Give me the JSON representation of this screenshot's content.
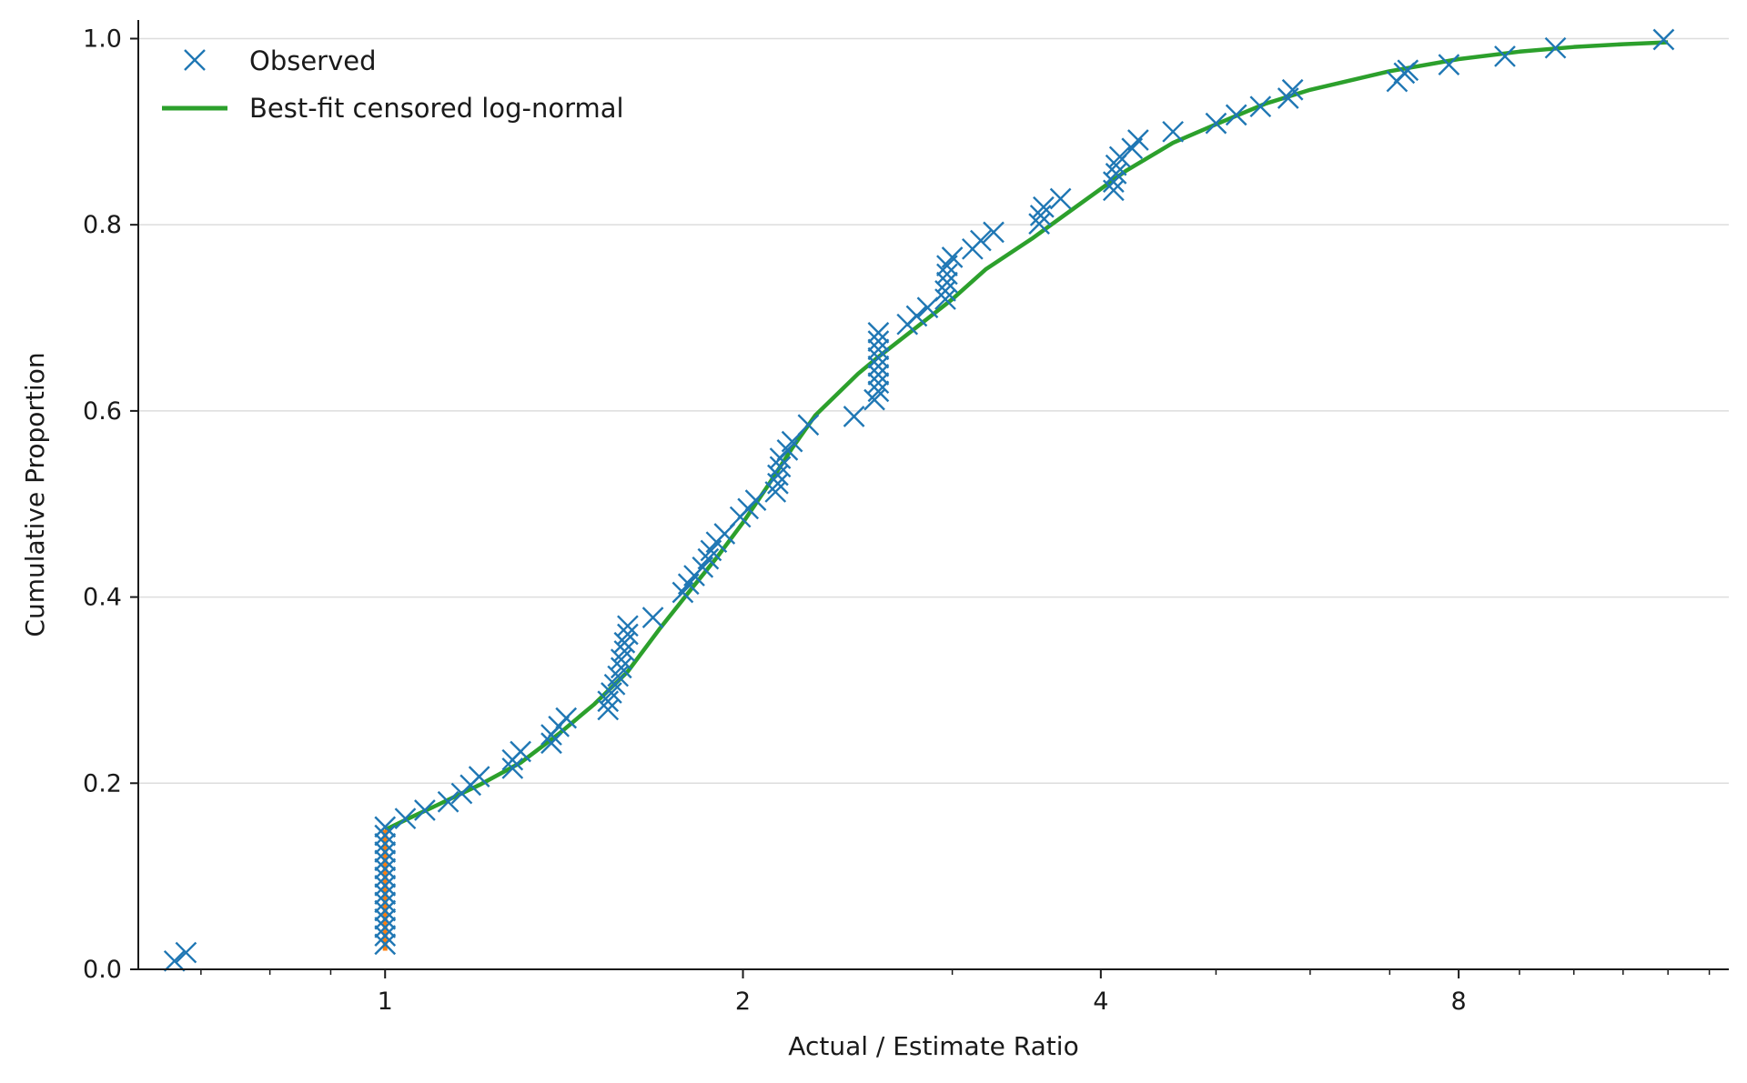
{
  "chart_data": {
    "type": "scatter",
    "xlabel": "Actual / Estimate Ratio",
    "ylabel": "Cumulative Proportion",
    "x_scale": "log2",
    "xlim": [
      0.62,
      13.5
    ],
    "ylim": [
      0,
      1.02
    ],
    "x_ticks": [
      {
        "value": 1,
        "label": "1"
      },
      {
        "value": 2,
        "label": "2"
      },
      {
        "value": 4,
        "label": "4"
      },
      {
        "value": 8,
        "label": "8"
      }
    ],
    "y_ticks": [
      {
        "value": 0.0,
        "label": "0.0"
      },
      {
        "value": 0.2,
        "label": "0.2"
      },
      {
        "value": 0.4,
        "label": "0.4"
      },
      {
        "value": 0.6,
        "label": "0.6"
      },
      {
        "value": 0.8,
        "label": "0.8"
      },
      {
        "value": 1.0,
        "label": "1.0"
      }
    ],
    "grid": "horizontal",
    "legend_position": "top-left",
    "series": [
      {
        "name": "Observed",
        "kind": "marker-x",
        "color": "#1f77b4",
        "points": [
          [
            0.665,
            0.009
          ],
          [
            0.68,
            0.018
          ],
          [
            1.0,
            0.027
          ],
          [
            1.0,
            0.036
          ],
          [
            1.0,
            0.045
          ],
          [
            1.0,
            0.054
          ],
          [
            1.0,
            0.063
          ],
          [
            1.0,
            0.072
          ],
          [
            1.0,
            0.081
          ],
          [
            1.0,
            0.09
          ],
          [
            1.0,
            0.099
          ],
          [
            1.0,
            0.108
          ],
          [
            1.0,
            0.117
          ],
          [
            1.0,
            0.126
          ],
          [
            1.0,
            0.135
          ],
          [
            1.0,
            0.144
          ],
          [
            1.0,
            0.153
          ],
          [
            1.04,
            0.162
          ],
          [
            1.08,
            0.171
          ],
          [
            1.13,
            0.18
          ],
          [
            1.16,
            0.189
          ],
          [
            1.18,
            0.198
          ],
          [
            1.2,
            0.207
          ],
          [
            1.28,
            0.216
          ],
          [
            1.28,
            0.225
          ],
          [
            1.3,
            0.234
          ],
          [
            1.38,
            0.243
          ],
          [
            1.38,
            0.252
          ],
          [
            1.4,
            0.261
          ],
          [
            1.42,
            0.27
          ],
          [
            1.54,
            0.279
          ],
          [
            1.54,
            0.288
          ],
          [
            1.55,
            0.297
          ],
          [
            1.56,
            0.306
          ],
          [
            1.57,
            0.315
          ],
          [
            1.58,
            0.324
          ],
          [
            1.58,
            0.333
          ],
          [
            1.59,
            0.342
          ],
          [
            1.59,
            0.351
          ],
          [
            1.6,
            0.36
          ],
          [
            1.6,
            0.369
          ],
          [
            1.68,
            0.378
          ],
          [
            1.78,
            0.405
          ],
          [
            1.8,
            0.414
          ],
          [
            1.82,
            0.423
          ],
          [
            1.85,
            0.432
          ],
          [
            1.87,
            0.441
          ],
          [
            1.88,
            0.45
          ],
          [
            1.9,
            0.459
          ],
          [
            1.93,
            0.468
          ],
          [
            1.99,
            0.486
          ],
          [
            2.02,
            0.495
          ],
          [
            2.05,
            0.504
          ],
          [
            2.13,
            0.513
          ],
          [
            2.14,
            0.522
          ],
          [
            2.14,
            0.531
          ],
          [
            2.15,
            0.54
          ],
          [
            2.15,
            0.549
          ],
          [
            2.18,
            0.558
          ],
          [
            2.2,
            0.567
          ],
          [
            2.27,
            0.585
          ],
          [
            2.48,
            0.594
          ],
          [
            2.58,
            0.612
          ],
          [
            2.6,
            0.621
          ],
          [
            2.6,
            0.63
          ],
          [
            2.6,
            0.639
          ],
          [
            2.6,
            0.648
          ],
          [
            2.6,
            0.657
          ],
          [
            2.6,
            0.666
          ],
          [
            2.6,
            0.675
          ],
          [
            2.6,
            0.684
          ],
          [
            2.75,
            0.693
          ],
          [
            2.8,
            0.702
          ],
          [
            2.86,
            0.711
          ],
          [
            2.96,
            0.72
          ],
          [
            2.96,
            0.729
          ],
          [
            2.97,
            0.738
          ],
          [
            2.97,
            0.747
          ],
          [
            2.97,
            0.756
          ],
          [
            3.0,
            0.765
          ],
          [
            3.12,
            0.774
          ],
          [
            3.17,
            0.783
          ],
          [
            3.25,
            0.792
          ],
          [
            3.55,
            0.801
          ],
          [
            3.56,
            0.81
          ],
          [
            3.58,
            0.819
          ],
          [
            3.7,
            0.828
          ],
          [
            4.1,
            0.837
          ],
          [
            4.1,
            0.846
          ],
          [
            4.12,
            0.855
          ],
          [
            4.12,
            0.864
          ],
          [
            4.15,
            0.873
          ],
          [
            4.25,
            0.882
          ],
          [
            4.3,
            0.891
          ],
          [
            4.6,
            0.9
          ],
          [
            5.0,
            0.909
          ],
          [
            5.2,
            0.918
          ],
          [
            5.45,
            0.927
          ],
          [
            5.75,
            0.936
          ],
          [
            5.8,
            0.945
          ],
          [
            7.1,
            0.954
          ],
          [
            7.2,
            0.963
          ],
          [
            7.25,
            0.966
          ],
          [
            7.85,
            0.972
          ],
          [
            8.75,
            0.981
          ],
          [
            9.65,
            0.99
          ],
          [
            11.9,
            0.999
          ]
        ]
      },
      {
        "name": "Best-fit censored log-normal",
        "kind": "line",
        "color": "#2ca02c",
        "points": [
          [
            1.0,
            0.15
          ],
          [
            1.05,
            0.163
          ],
          [
            1.1,
            0.175
          ],
          [
            1.2,
            0.198
          ],
          [
            1.3,
            0.222
          ],
          [
            1.4,
            0.253
          ],
          [
            1.5,
            0.285
          ],
          [
            1.6,
            0.32
          ],
          [
            1.7,
            0.365
          ],
          [
            1.8,
            0.405
          ],
          [
            1.9,
            0.442
          ],
          [
            2.0,
            0.48
          ],
          [
            2.1,
            0.52
          ],
          [
            2.2,
            0.56
          ],
          [
            2.3,
            0.595
          ],
          [
            2.4,
            0.618
          ],
          [
            2.5,
            0.64
          ],
          [
            2.6,
            0.658
          ],
          [
            2.8,
            0.69
          ],
          [
            3.0,
            0.72
          ],
          [
            3.2,
            0.752
          ],
          [
            3.5,
            0.785
          ],
          [
            3.8,
            0.818
          ],
          [
            4.2,
            0.858
          ],
          [
            4.6,
            0.888
          ],
          [
            5.0,
            0.908
          ],
          [
            5.5,
            0.93
          ],
          [
            6.0,
            0.945
          ],
          [
            7.0,
            0.965
          ],
          [
            8.0,
            0.978
          ],
          [
            9.0,
            0.986
          ],
          [
            10.0,
            0.991
          ],
          [
            11.0,
            0.994
          ],
          [
            12.0,
            0.996
          ]
        ]
      },
      {
        "kind": "segment",
        "color": "#ff7f0e",
        "points": [
          [
            1.0,
            0.02
          ],
          [
            1.0,
            0.15
          ]
        ]
      }
    ]
  }
}
